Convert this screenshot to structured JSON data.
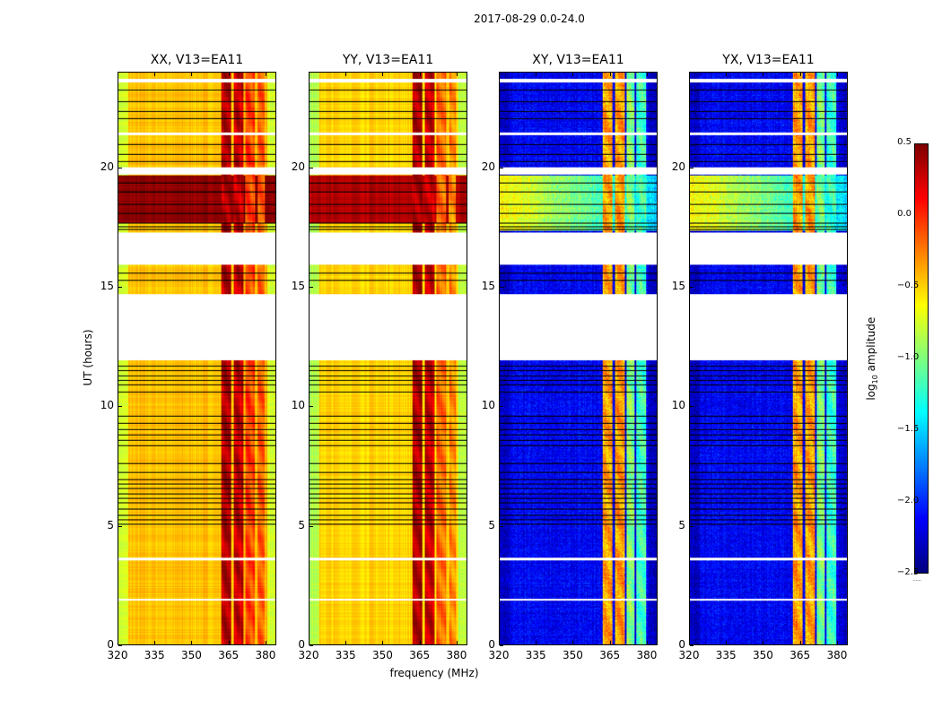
{
  "chart_data": {
    "type": "heatmap",
    "suptitle": "2017-08-29 0.0-24.0",
    "xlabel": "frequency (MHz)",
    "ylabel": "UT (hours)",
    "xlim": [
      320,
      384.4
    ],
    "ylim": [
      0,
      24
    ],
    "xticks": [
      "320",
      "335",
      "350",
      "365",
      "380"
    ],
    "yticks": [
      "0",
      "5",
      "10",
      "15",
      "20"
    ],
    "colorbar": {
      "label_main": "log",
      "label_sub": "10",
      "label_rest": " amplitude",
      "range": [
        -2.5,
        0.5
      ],
      "ticks": [
        "0.5",
        "0.0",
        "−0.5",
        "−1.0",
        "−1.5",
        "−2.0",
        "−2.5"
      ],
      "dots": "......",
      "colormap": "jet"
    },
    "time_gaps_hours": [
      [
        11.95,
        14.7
      ],
      [
        15.95,
        17.3
      ],
      [
        19.75,
        20.05
      ],
      [
        23.6,
        23.75
      ],
      [
        21.4,
        21.5
      ],
      [
        3.55,
        3.65
      ],
      [
        1.85,
        1.95
      ]
    ],
    "flag_lines_hours": [
      23.3,
      22.8,
      22.4,
      22.1,
      21.0,
      20.6,
      20.3,
      19.4,
      19.0,
      18.5,
      18.1,
      17.7,
      17.55,
      17.45,
      15.6,
      15.3,
      11.7,
      11.5,
      11.3,
      11.1,
      10.9,
      10.6,
      9.6,
      9.3,
      9.05,
      8.8,
      8.6,
      8.35,
      7.6,
      7.25,
      6.95,
      6.75,
      6.55,
      6.35,
      6.15,
      5.95,
      5.7,
      5.45,
      5.25,
      5.05
    ],
    "panels": [
      {
        "title": "XX, V13=EA11",
        "base": -0.45,
        "edge": -0.75,
        "bands": [
          [
            362,
            366,
            0.35
          ],
          [
            367,
            371,
            0.3
          ],
          [
            372,
            376,
            -0.1
          ],
          [
            377,
            380,
            -0.15
          ]
        ],
        "bright_block": [
          17.7,
          19.7,
          0.45
        ]
      },
      {
        "title": "YY, V13=EA11",
        "base": -0.5,
        "edge": -0.85,
        "bands": [
          [
            362,
            366,
            0.35
          ],
          [
            367,
            371,
            0.3
          ],
          [
            372,
            376,
            -0.2
          ],
          [
            377,
            380,
            -0.3
          ]
        ],
        "bright_block": [
          17.7,
          19.7,
          0.35
        ]
      },
      {
        "title": "XY, V13=EA11",
        "base": -2.15,
        "edge": -2.3,
        "bands": [
          [
            362,
            366,
            -0.35
          ],
          [
            367,
            371,
            -0.35
          ],
          [
            372,
            375,
            -1.0
          ],
          [
            376,
            380,
            -1.2
          ]
        ],
        "bright_block": [
          17.4,
          19.7,
          -0.6
        ]
      },
      {
        "title": "YX, V13=EA11",
        "base": -2.15,
        "edge": -2.3,
        "bands": [
          [
            362,
            366,
            -0.35
          ],
          [
            367,
            371,
            -0.35
          ],
          [
            372,
            375,
            -1.0
          ],
          [
            376,
            380,
            -1.2
          ]
        ],
        "bright_block": [
          17.4,
          19.7,
          -0.6
        ]
      }
    ]
  }
}
